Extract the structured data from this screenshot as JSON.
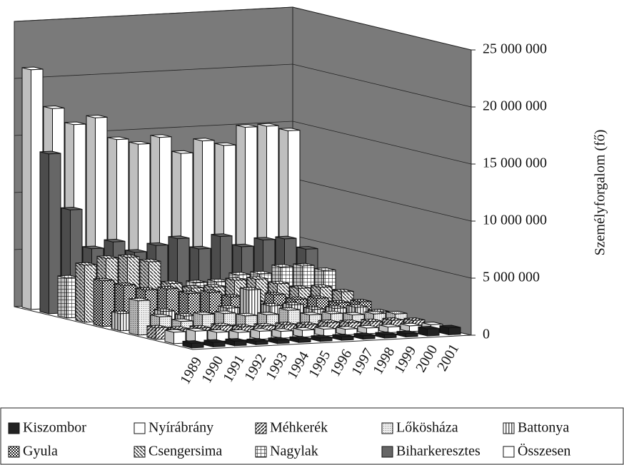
{
  "chart_data": {
    "type": "bar3d",
    "y_label": "Személyforgalom (fő)",
    "categories": [
      "1989",
      "1990",
      "1991",
      "1992",
      "1993",
      "1994",
      "1995",
      "1996",
      "1997",
      "1998",
      "1999",
      "2000",
      "2001"
    ],
    "ylim": [
      0,
      25000000
    ],
    "yticks": [
      0,
      {
        "value": 5000000,
        "label": "5 000 000"
      },
      {
        "value": 10000000,
        "label": "10 000 000"
      },
      {
        "value": 15000000,
        "label": "15 000 000"
      },
      {
        "value": 20000000,
        "label": "20 000 000"
      },
      {
        "value": 25000000,
        "label": "25 000 000"
      }
    ],
    "grid": true,
    "wall_color": "#7a7a7a",
    "series": [
      {
        "name": "Kiszombor",
        "color": "#222222",
        "pattern": "solid",
        "values": [
          400000,
          400000,
          400000,
          300000,
          300000,
          300000,
          300000,
          300000,
          300000,
          300000,
          300000,
          600000,
          600000
        ]
      },
      {
        "name": "Nyírábrány",
        "color": "#ffffff",
        "pattern": "solid",
        "values": [
          1000000,
          1000000,
          800000,
          700000,
          700000,
          600000,
          600000,
          600000,
          500000,
          500000,
          500000,
          500000,
          500000
        ]
      },
      {
        "name": "Méhkerék",
        "color": "#444444",
        "pattern": "diagonal",
        "values": [
          1000000,
          800000,
          800000,
          900000,
          700000,
          700000,
          700000,
          600000,
          700000,
          600000,
          600000,
          600000,
          500000
        ]
      },
      {
        "name": "Lőkösháza",
        "color": "#cccccc",
        "pattern": "dots",
        "values": [
          3000000,
          1500000,
          1000000,
          1500000,
          1500000,
          1200000,
          1200000,
          1500000,
          1000000,
          1000000,
          800000,
          800000,
          700000
        ]
      },
      {
        "name": "Battonya",
        "color": "#888888",
        "pattern": "vertical",
        "values": [
          1500000,
          1000000,
          1500000,
          1000000,
          1000000,
          1500000,
          3000000,
          1500000,
          1500000,
          1000000,
          1000000,
          1000000,
          500000
        ]
      },
      {
        "name": "Gyula",
        "color": "#333333",
        "pattern": "checker",
        "values": [
          4000000,
          3500000,
          3000000,
          3000000,
          2500000,
          2500000,
          2000000,
          1500000,
          2000000,
          1500000,
          1500000,
          1000000,
          1000000
        ]
      },
      {
        "name": "Csengersima",
        "color": "#555555",
        "pattern": "diagonal2",
        "values": [
          5000000,
          5500000,
          5500000,
          5000000,
          3000000,
          2500000,
          2500000,
          3000000,
          3000000,
          2500000,
          2000000,
          2000000,
          1500000
        ]
      },
      {
        "name": "Nagylak",
        "color": "#444444",
        "pattern": "grid",
        "values": [
          3500000,
          3000000,
          3500000,
          3000000,
          2500000,
          2000000,
          2500000,
          2500000,
          3000000,
          3000000,
          3500000,
          3500000,
          3000000
        ]
      },
      {
        "name": "Biharkeresztes",
        "color": "#666666",
        "pattern": "solid",
        "values": [
          14000000,
          9000000,
          5500000,
          6000000,
          5000000,
          5500000,
          6000000,
          5000000,
          6000000,
          5000000,
          5500000,
          5500000,
          4500000
        ]
      },
      {
        "name": "Összesen",
        "color": "#ffffff",
        "pattern": "solid",
        "values": [
          21000000,
          17500000,
          16000000,
          16500000,
          14500000,
          14000000,
          14500000,
          13000000,
          14000000,
          13500000,
          15000000,
          15000000,
          14500000
        ]
      }
    ]
  }
}
